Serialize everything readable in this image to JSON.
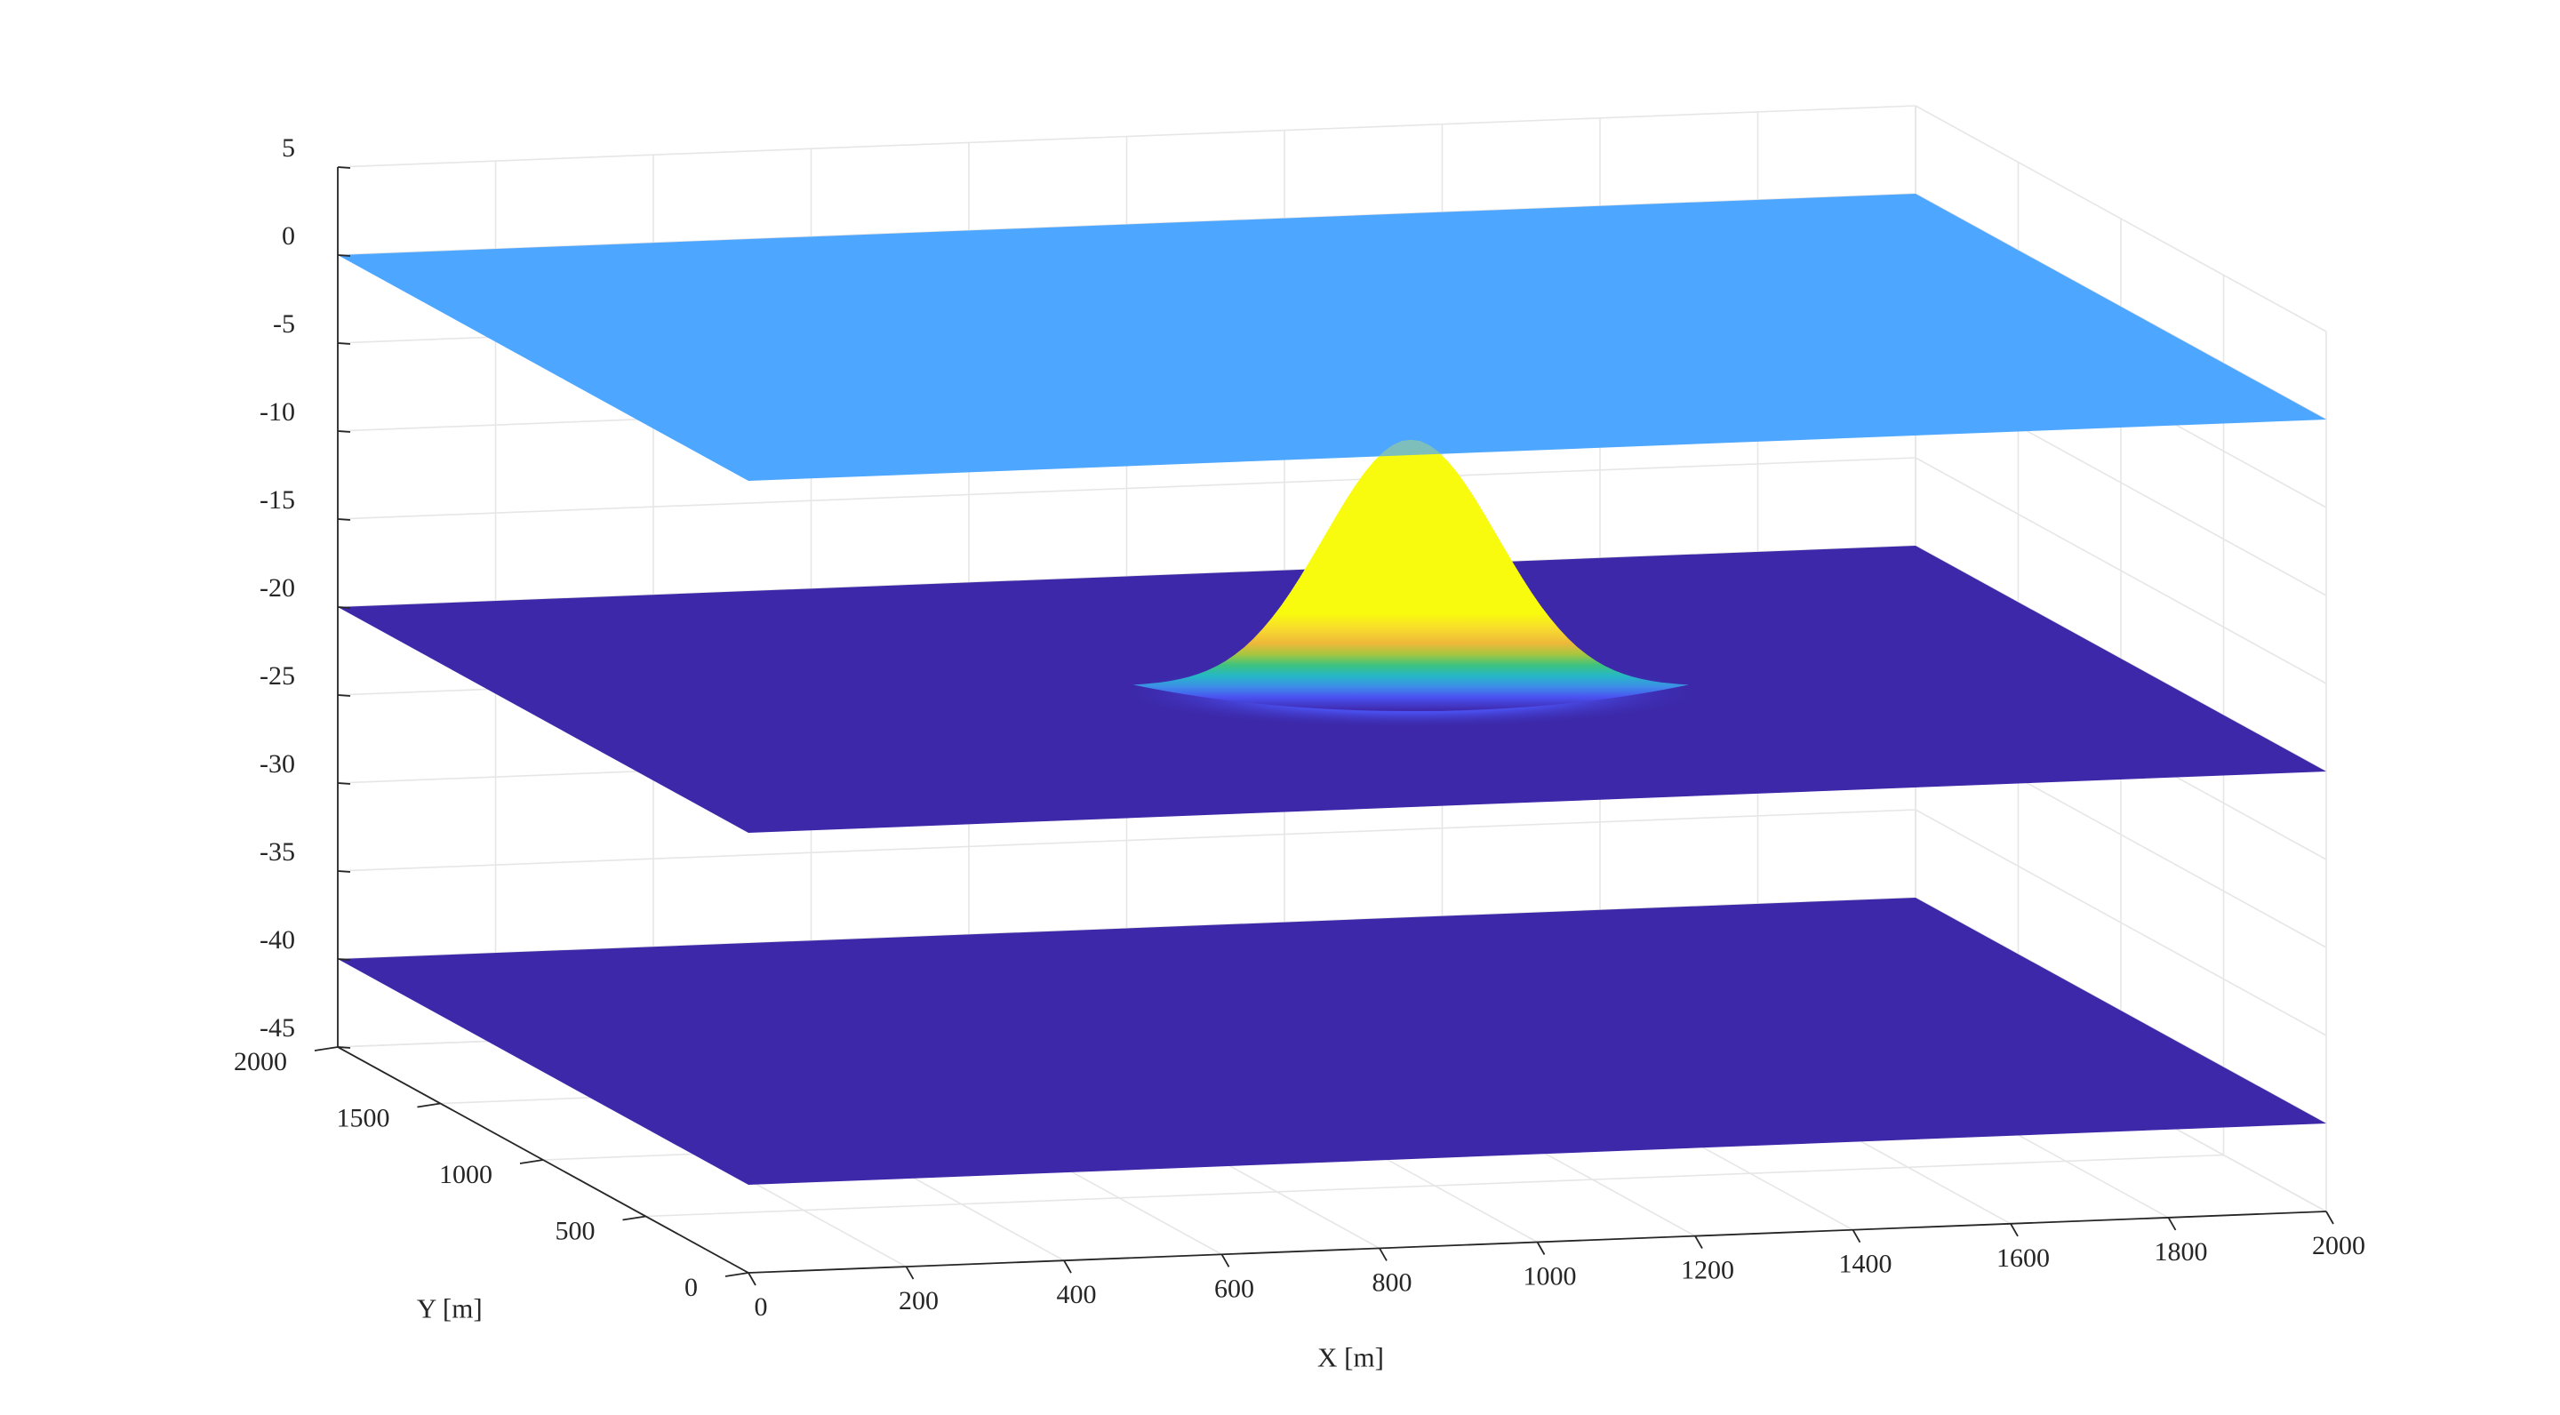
{
  "chart_data": {
    "type": "surface",
    "title": "",
    "xlabel": "X [m]",
    "ylabel": "Y [m]",
    "zlabel": "",
    "xlim": [
      0,
      2000
    ],
    "ylim": [
      0,
      2000
    ],
    "zlim": [
      -45,
      5
    ],
    "xticks": [
      0,
      200,
      400,
      600,
      800,
      1000,
      1200,
      1400,
      1600,
      1800,
      2000
    ],
    "yticks": [
      0,
      500,
      1000,
      1500,
      2000
    ],
    "zticks": [
      -45,
      -40,
      -35,
      -30,
      -25,
      -20,
      -15,
      -10,
      -5,
      0,
      5
    ],
    "grid": true,
    "series": [
      {
        "z": 0,
        "color": "#4da6ff",
        "opacity": 1.0
      },
      {
        "z": -20,
        "color": "#3c28a8",
        "opacity": 1.0,
        "feature": {
          "type": "gaussian-hill",
          "center_x": 1100,
          "center_y": 1000,
          "peak_z": -6,
          "sigma": 110
        }
      },
      {
        "z": -40,
        "color": "#3c28a8",
        "opacity": 1.0
      }
    ],
    "colormap": [
      "#3e26a8",
      "#4a50f0",
      "#3d8ee8",
      "#25b7c6",
      "#3ec37f",
      "#a7c63f",
      "#eeb83a",
      "#f7d92e",
      "#f9fb0e"
    ]
  }
}
